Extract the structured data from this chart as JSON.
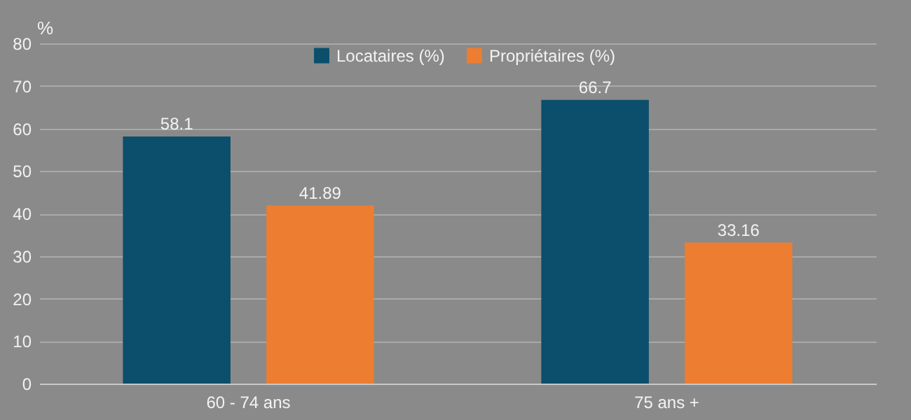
{
  "chart_data": {
    "type": "bar",
    "ylabel": "%",
    "categories": [
      "60 - 74 ans",
      "75 ans +"
    ],
    "series": [
      {
        "name": "Locataires (%)",
        "color": "#0b4f6c",
        "values": [
          58.1,
          66.7
        ]
      },
      {
        "name": "Propriétaires (%)",
        "color": "#ed7d31",
        "values": [
          41.89,
          33.16
        ]
      }
    ],
    "ylim": [
      0,
      80
    ],
    "yticks": [
      0,
      10,
      20,
      30,
      40,
      50,
      60,
      70,
      80
    ],
    "grid": "y",
    "legend": "top",
    "data_labels": true
  }
}
